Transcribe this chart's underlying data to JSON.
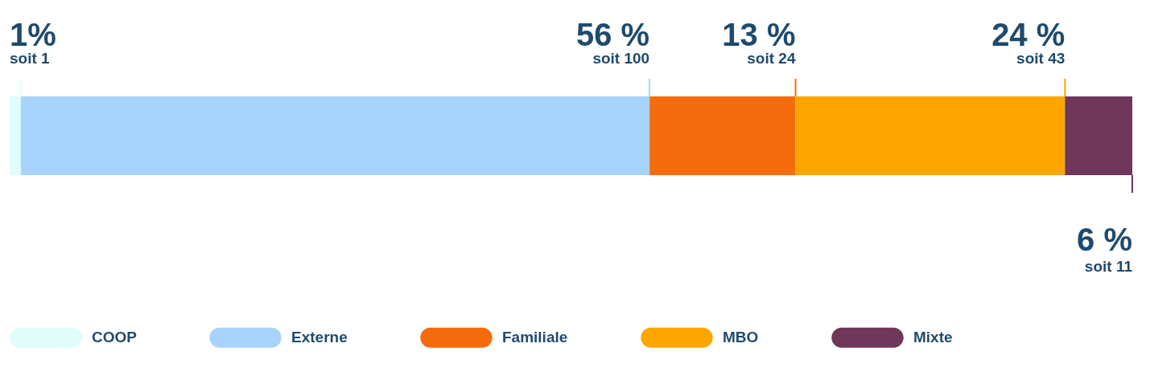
{
  "chart_data": {
    "type": "bar",
    "orientation": "horizontal",
    "stacked": true,
    "categories": [
      null
    ],
    "xlim": [
      0,
      100
    ],
    "tick_labels": false,
    "legend": "bottom",
    "series": [
      {
        "name": "COOP",
        "color": "#e0fdfb",
        "values": [
          1
        ],
        "value_labels": [
          "1%"
        ]
      },
      {
        "name": "Externe",
        "color": "#a8d3fd",
        "values": [
          56
        ],
        "value_labels": [
          "56 %"
        ]
      },
      {
        "name": "Familiale",
        "color": "#f46c0e",
        "values": [
          13
        ],
        "value_labels": [
          "13 %"
        ]
      },
      {
        "name": "MBO",
        "color": "#fea500",
        "values": [
          24
        ],
        "value_labels": [
          "24 %"
        ]
      },
      {
        "name": "Mixte",
        "color": "#6f375a",
        "values": [
          6
        ],
        "value_labels": [
          "6 %"
        ]
      }
    ],
    "annotations": [
      "soit 1",
      "soit 100",
      "soit 24",
      "soit 43",
      "soit 11"
    ]
  }
}
